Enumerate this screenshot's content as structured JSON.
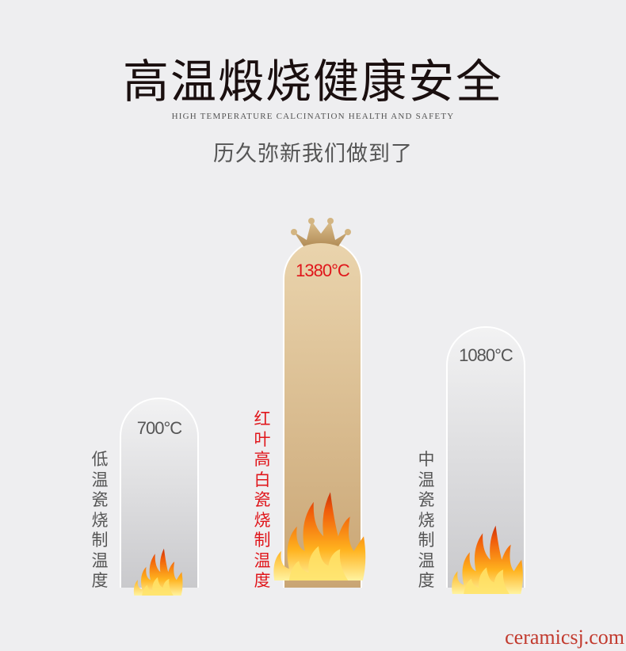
{
  "header": {
    "title": "高温煅烧健康安全",
    "subtitle_en": "HIGH TEMPERATURE CALCINATION HEALTH AND SAFETY",
    "tagline": "历久弥新我们做到了"
  },
  "bars": [
    {
      "temperature": "700°C",
      "value_c": 700,
      "label": "低温瓷烧制温度",
      "style": "gray"
    },
    {
      "temperature": "1380°C",
      "value_c": 1380,
      "label": "红叶高白瓷烧制温度",
      "style": "gold",
      "crown": true
    },
    {
      "temperature": "1080°C",
      "value_c": 1080,
      "label": "中温瓷烧制温度",
      "style": "gray"
    }
  ],
  "colors": {
    "highlight": "#e0161b",
    "gold": "#c9a574",
    "background": "#eeeef0"
  },
  "watermark": "ceramicsj.com"
}
